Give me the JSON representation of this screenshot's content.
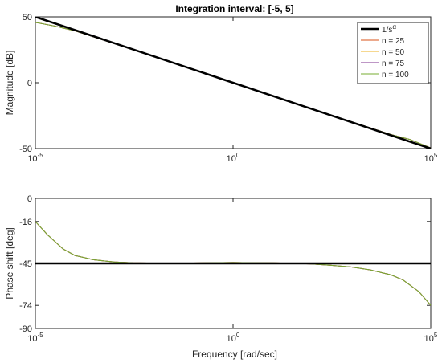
{
  "chart_data": [
    {
      "type": "line",
      "title": "Integration interval: [-5, 5]",
      "xlabel": "",
      "ylabel": "Magnitude [dB]",
      "xscale": "log",
      "xlim": [
        1e-05,
        100000
      ],
      "ylim": [
        -50,
        50
      ],
      "xticks": [
        {
          "base": "10",
          "exp": "-5"
        },
        {
          "base": "10",
          "exp": "0"
        },
        {
          "base": "10",
          "exp": "5"
        }
      ],
      "yticks": [
        "50",
        "0",
        "-50"
      ],
      "ytick_values": [
        50,
        0,
        -50
      ],
      "grid": false,
      "legend_position": "top-right",
      "reference": {
        "name_base": "1/s",
        "name_sup": "α",
        "color": "#000000",
        "x": [
          1e-05,
          100000
        ],
        "y": [
          50,
          -50
        ]
      },
      "series": [
        {
          "name": "n = 25",
          "color": "#d95319",
          "x": [
            1e-05,
            3e-05,
            0.0001,
            0.001,
            0.01,
            0.1,
            1,
            10,
            100,
            1000,
            10000,
            30000,
            100000
          ],
          "y": [
            45.8,
            43.1,
            39.4,
            29.7,
            19.9,
            10,
            0,
            -10,
            -19.9,
            -29.7,
            -39.4,
            -43.1,
            -49.5
          ]
        },
        {
          "name": "n = 50",
          "color": "#edb120",
          "x": [
            1e-05,
            3e-05,
            0.0001,
            0.001,
            0.01,
            0.1,
            1,
            10,
            100,
            1000,
            10000,
            30000,
            100000
          ],
          "y": [
            45.8,
            43.1,
            39.4,
            29.7,
            19.9,
            10,
            0,
            -10,
            -19.9,
            -29.7,
            -39.4,
            -43.1,
            -49.5
          ]
        },
        {
          "name": "n = 75",
          "color": "#7e2f8e",
          "x": [
            1e-05,
            3e-05,
            0.0001,
            0.001,
            0.01,
            0.1,
            1,
            10,
            100,
            1000,
            10000,
            30000,
            100000
          ],
          "y": [
            45.8,
            43.1,
            39.4,
            29.7,
            19.9,
            10,
            0,
            -10,
            -19.9,
            -29.7,
            -39.4,
            -43.1,
            -49.5
          ]
        },
        {
          "name": "n = 100",
          "color": "#77ac30",
          "x": [
            1e-05,
            3e-05,
            0.0001,
            0.001,
            0.01,
            0.1,
            1,
            10,
            100,
            1000,
            10000,
            30000,
            100000
          ],
          "y": [
            45.8,
            43.1,
            39.4,
            29.7,
            19.9,
            10,
            0,
            -10,
            -19.9,
            -29.7,
            -39.4,
            -43.1,
            -49.5
          ]
        }
      ]
    },
    {
      "type": "line",
      "title": "",
      "xlabel": "Frequency [rad/sec]",
      "ylabel": "Phase shift [deg]",
      "xscale": "log",
      "xlim": [
        1e-05,
        100000
      ],
      "ylim": [
        -90,
        0
      ],
      "xticks": [
        {
          "base": "10",
          "exp": "-5"
        },
        {
          "base": "10",
          "exp": "0"
        },
        {
          "base": "10",
          "exp": "5"
        }
      ],
      "yticks": [
        "0",
        "-16",
        "-45",
        "-74",
        "-90"
      ],
      "ytick_values": [
        0,
        -16,
        -45,
        -74,
        -90
      ],
      "grid": false,
      "reference": {
        "color": "#000000",
        "x": [
          1e-05,
          100000
        ],
        "y": [
          -45,
          -45
        ]
      },
      "series": [
        {
          "name": "n = 25",
          "color": "#d95319",
          "x": [
            1e-05,
            2e-05,
            5e-05,
            0.0001,
            0.0003,
            0.001,
            0.003,
            0.01,
            0.03,
            0.1,
            0.3,
            1,
            3,
            10,
            30,
            100,
            300,
            1000,
            3000,
            10000,
            20000,
            50000,
            100000
          ],
          "y": [
            -16,
            -25,
            -35,
            -39.5,
            -42.5,
            -44,
            -44.6,
            -44.8,
            -44.8,
            -44.7,
            -44.5,
            -44.4,
            -44.5,
            -44.6,
            -44.9,
            -45.4,
            -46.3,
            -47.5,
            -49.5,
            -53,
            -56.5,
            -64.5,
            -74
          ]
        },
        {
          "name": "n = 50",
          "color": "#edb120",
          "x": [
            1e-05,
            2e-05,
            5e-05,
            0.0001,
            0.0003,
            0.001,
            0.003,
            0.01,
            0.03,
            0.1,
            0.3,
            1,
            3,
            10,
            30,
            100,
            300,
            1000,
            3000,
            10000,
            20000,
            50000,
            100000
          ],
          "y": [
            -16,
            -25,
            -35,
            -39.5,
            -42.5,
            -44,
            -44.6,
            -44.8,
            -44.8,
            -44.7,
            -44.5,
            -44.4,
            -44.5,
            -44.6,
            -44.9,
            -45.4,
            -46.3,
            -47.5,
            -49.5,
            -53,
            -56.5,
            -64.5,
            -74
          ]
        },
        {
          "name": "n = 75",
          "color": "#7e2f8e",
          "x": [
            1e-05,
            2e-05,
            5e-05,
            0.0001,
            0.0003,
            0.001,
            0.003,
            0.01,
            0.03,
            0.1,
            0.3,
            1,
            3,
            10,
            30,
            100,
            300,
            1000,
            3000,
            10000,
            20000,
            50000,
            100000
          ],
          "y": [
            -16,
            -25,
            -35,
            -39.5,
            -42.5,
            -44,
            -44.6,
            -44.8,
            -44.8,
            -44.7,
            -44.5,
            -44.4,
            -44.5,
            -44.6,
            -44.9,
            -45.4,
            -46.3,
            -47.5,
            -49.5,
            -53,
            -56.5,
            -64.5,
            -74
          ]
        },
        {
          "name": "n = 100",
          "color": "#77ac30",
          "x": [
            1e-05,
            2e-05,
            5e-05,
            0.0001,
            0.0003,
            0.001,
            0.003,
            0.01,
            0.03,
            0.1,
            0.3,
            1,
            3,
            10,
            30,
            100,
            300,
            1000,
            3000,
            10000,
            20000,
            50000,
            100000
          ],
          "y": [
            -16,
            -25,
            -35,
            -39.5,
            -42.5,
            -44,
            -44.6,
            -44.8,
            -44.8,
            -44.7,
            -44.5,
            -44.4,
            -44.5,
            -44.6,
            -44.9,
            -45.4,
            -46.3,
            -47.5,
            -49.5,
            -53,
            -56.5,
            -64.5,
            -74
          ]
        }
      ]
    }
  ]
}
